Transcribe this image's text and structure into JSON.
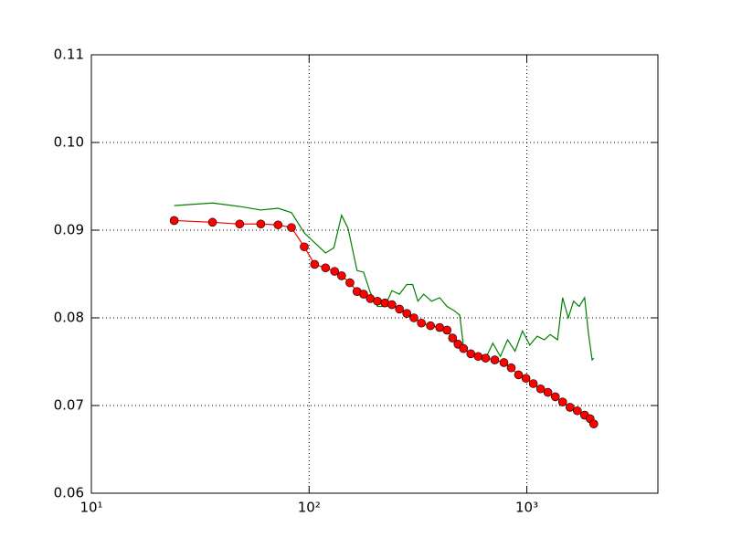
{
  "chart_data": {
    "type": "line",
    "xscale": "log",
    "xlim": [
      10,
      4000
    ],
    "ylim": [
      0.06,
      0.11
    ],
    "xticks": [
      {
        "value": 10,
        "label": "10¹"
      },
      {
        "value": 100,
        "label": "10²"
      },
      {
        "value": 1000,
        "label": "10³"
      }
    ],
    "yticks": [
      0.06,
      0.07,
      0.08,
      0.09,
      {
        "value": 0.1,
        "label": "0.10"
      },
      0.11
    ],
    "grid": true,
    "series": [
      {
        "color": "#008000",
        "marker": "none",
        "x": [
          24,
          36,
          48,
          60,
          72,
          83,
          95,
          119,
          130,
          141,
          151,
          166,
          178,
          191,
          206,
          223,
          240,
          260,
          281,
          299,
          316,
          336,
          365,
          398,
          430,
          465,
          492,
          512,
          553,
          598,
          647,
          698,
          756,
          816,
          883,
          955,
          1032,
          1115,
          1205,
          1280,
          1384,
          1460,
          1550,
          1640,
          1740,
          1843,
          1920,
          1995,
          2030
        ],
        "values": [
          0.0928,
          0.0931,
          0.0927,
          0.0923,
          0.0925,
          0.092,
          0.0897,
          0.0874,
          0.088,
          0.0917,
          0.0902,
          0.0854,
          0.0852,
          0.0829,
          0.0813,
          0.0813,
          0.0831,
          0.0827,
          0.0838,
          0.0838,
          0.0819,
          0.0827,
          0.0819,
          0.0823,
          0.0813,
          0.0808,
          0.0803,
          0.0767,
          0.0756,
          0.0758,
          0.0754,
          0.0771,
          0.0756,
          0.0775,
          0.0762,
          0.0785,
          0.0769,
          0.0779,
          0.0775,
          0.0781,
          0.0775,
          0.0823,
          0.08,
          0.0819,
          0.0813,
          0.0823,
          0.0782,
          0.0752,
          0.0754
        ]
      },
      {
        "color": "#ff0000",
        "marker": "o",
        "x": [
          24,
          36,
          48,
          60,
          72,
          83,
          95,
          106,
          119,
          131,
          141,
          154,
          166,
          178,
          191,
          206,
          223,
          240,
          260,
          281,
          303,
          328,
          361,
          398,
          430,
          456,
          483,
          512,
          553,
          598,
          647,
          713,
          785,
          848,
          916,
          991,
          1071,
          1157,
          1250,
          1352,
          1460,
          1578,
          1706,
          1843,
          1953,
          2030
        ],
        "values": [
          0.0911,
          0.0909,
          0.0907,
          0.0907,
          0.0906,
          0.0903,
          0.0881,
          0.0861,
          0.0857,
          0.0853,
          0.0848,
          0.084,
          0.083,
          0.0827,
          0.0822,
          0.0819,
          0.0817,
          0.0815,
          0.081,
          0.0805,
          0.08,
          0.0794,
          0.0791,
          0.0789,
          0.0786,
          0.0777,
          0.077,
          0.0765,
          0.0759,
          0.0756,
          0.0754,
          0.0752,
          0.0749,
          0.0743,
          0.0735,
          0.0731,
          0.0725,
          0.0719,
          0.0715,
          0.071,
          0.0704,
          0.0698,
          0.0694,
          0.0689,
          0.0685,
          0.0679
        ]
      }
    ]
  }
}
